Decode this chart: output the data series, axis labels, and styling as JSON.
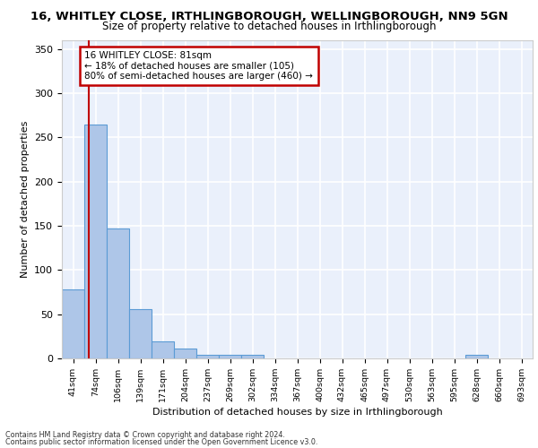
{
  "title": "16, WHITLEY CLOSE, IRTHLINGBOROUGH, WELLINGBOROUGH, NN9 5GN",
  "subtitle": "Size of property relative to detached houses in Irthlingborough",
  "xlabel": "Distribution of detached houses by size in Irthlingborough",
  "ylabel": "Number of detached properties",
  "categories": [
    "41sqm",
    "74sqm",
    "106sqm",
    "139sqm",
    "171sqm",
    "204sqm",
    "237sqm",
    "269sqm",
    "302sqm",
    "334sqm",
    "367sqm",
    "400sqm",
    "432sqm",
    "465sqm",
    "497sqm",
    "530sqm",
    "563sqm",
    "595sqm",
    "628sqm",
    "660sqm",
    "693sqm"
  ],
  "values": [
    78,
    265,
    147,
    56,
    19,
    11,
    4,
    4,
    4,
    0,
    0,
    0,
    0,
    0,
    0,
    0,
    0,
    0,
    4,
    0,
    0
  ],
  "bar_color": "#aec6e8",
  "bar_edge_color": "#5b9bd5",
  "marker_label": "16 WHITLEY CLOSE: 81sqm",
  "annotation_line1": "← 18% of detached houses are smaller (105)",
  "annotation_line2": "80% of semi-detached houses are larger (460) →",
  "marker_color": "#c00000",
  "box_edge_color": "#c00000",
  "ylim": [
    0,
    360
  ],
  "yticks": [
    0,
    50,
    100,
    150,
    200,
    250,
    300,
    350
  ],
  "background_color": "#eaf0fb",
  "grid_color": "#ffffff",
  "footer_line1": "Contains HM Land Registry data © Crown copyright and database right 2024.",
  "footer_line2": "Contains public sector information licensed under the Open Government Licence v3.0."
}
